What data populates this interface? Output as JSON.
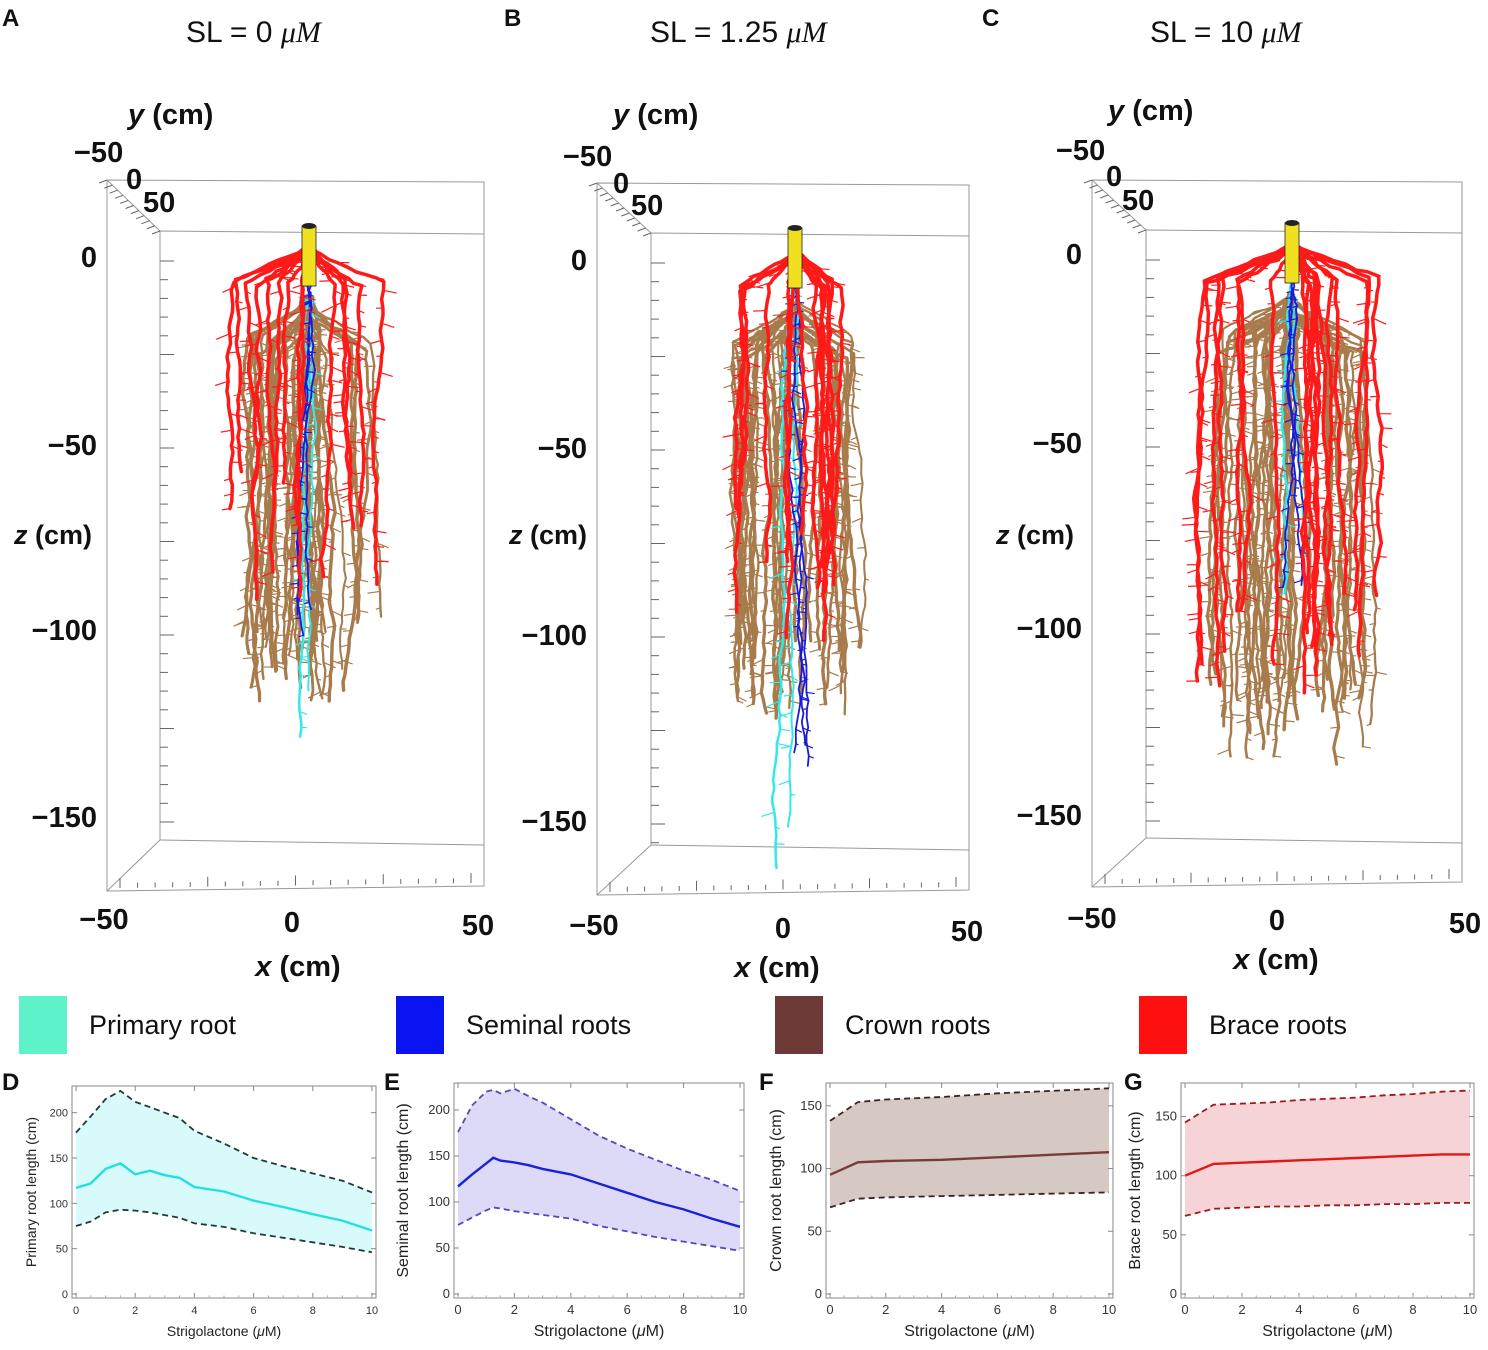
{
  "panels": {
    "A": {
      "letter": "A",
      "title_prefix": "SL = ",
      "title_value": "0",
      "title_unit": "μM"
    },
    "B": {
      "letter": "B",
      "title_prefix": "SL = ",
      "title_value": "1.25",
      "title_unit": "μM"
    },
    "C": {
      "letter": "C",
      "title_prefix": "SL = ",
      "title_value": "10",
      "title_unit": "μM"
    }
  },
  "sim_axes": {
    "y_label": "y (cm)",
    "z_label": "z (cm)",
    "x_label": "x (cm)",
    "y_ticks": [
      "−50",
      "0",
      "50"
    ],
    "z_ticks": [
      "0",
      "−50",
      "−100",
      "−150"
    ],
    "x_ticks": [
      "−50",
      "0",
      "50"
    ]
  },
  "legend": [
    {
      "label": "Primary root",
      "color": "#5ef2c8"
    },
    {
      "label": "Seminal roots",
      "color": "#0a14f0"
    },
    {
      "label": "Crown roots",
      "color": "#6e3a37"
    },
    {
      "label": "Brace roots",
      "color": "#ff1010"
    }
  ],
  "root_colors": {
    "primary": "#33e8e8",
    "seminal": "#1a1ad8",
    "crown": "#a77b4c",
    "brace": "#ff1a1a",
    "stem": "#f0e020"
  },
  "chart_data": [
    {
      "type": "line",
      "letter": "D",
      "xlabel": "Strigolactone (μM)",
      "ylabel": "Primary root length (cm)",
      "xlim": [
        0,
        10
      ],
      "ylim": [
        0,
        225
      ],
      "xticks": [
        0,
        2,
        4,
        6,
        8,
        10
      ],
      "yticks": [
        0,
        50,
        100,
        150,
        200
      ],
      "color": "#22e0e0",
      "band_color": "#d8fafa",
      "bound_color": "#1e3b36",
      "x": [
        0,
        0.5,
        1,
        1.5,
        2,
        2.5,
        3,
        3.5,
        4,
        5,
        6,
        7,
        8,
        9,
        10
      ],
      "mean": [
        117,
        122,
        138,
        144,
        132,
        136,
        131,
        128,
        118,
        113,
        103,
        96,
        88,
        81,
        70
      ],
      "upper": [
        178,
        196,
        215,
        224,
        212,
        206,
        200,
        194,
        180,
        166,
        150,
        141,
        133,
        125,
        112
      ],
      "lower": [
        75,
        80,
        90,
        93,
        92,
        90,
        87,
        84,
        78,
        74,
        67,
        62,
        57,
        52,
        46
      ]
    },
    {
      "type": "line",
      "letter": "E",
      "xlabel": "Strigolactone (μM)",
      "ylabel": "Seminal root length (cm)",
      "xlim": [
        0,
        10
      ],
      "ylim": [
        0,
        225
      ],
      "xticks": [
        0,
        2,
        4,
        6,
        8,
        10
      ],
      "yticks": [
        0,
        50,
        100,
        150,
        200
      ],
      "color": "#1a22d8",
      "band_color": "#dcdaf7",
      "bound_color": "#5a46b8",
      "x": [
        0,
        0.5,
        1,
        1.25,
        1.5,
        2,
        2.5,
        3,
        4,
        5,
        6,
        7,
        8,
        9,
        10
      ],
      "mean": [
        117,
        130,
        142,
        148,
        145,
        143,
        140,
        136,
        130,
        120,
        110,
        100,
        92,
        82,
        73
      ],
      "upper": [
        176,
        205,
        220,
        222,
        218,
        223,
        215,
        208,
        190,
        172,
        158,
        146,
        134,
        124,
        112
      ],
      "lower": [
        75,
        83,
        91,
        94,
        93,
        90,
        88,
        86,
        82,
        74,
        68,
        62,
        57,
        52,
        47
      ]
    },
    {
      "type": "line",
      "letter": "F",
      "xlabel": "Strigolactone (μM)",
      "ylabel": "Crown root length (cm)",
      "xlim": [
        0,
        10
      ],
      "ylim": [
        0,
        165
      ],
      "xticks": [
        0,
        2,
        4,
        6,
        8,
        10
      ],
      "yticks": [
        0,
        50,
        100,
        150
      ],
      "color": "#7a3b3b",
      "band_color": "#d6c8c2",
      "bound_color": "#3e2222",
      "x": [
        0,
        1,
        2,
        4,
        6,
        8,
        10
      ],
      "mean": [
        95,
        105,
        106,
        107,
        109,
        111,
        113
      ],
      "upper": [
        138,
        153,
        155,
        157,
        160,
        162,
        164
      ],
      "lower": [
        69,
        76,
        77,
        78,
        79,
        80,
        81
      ]
    },
    {
      "type": "line",
      "letter": "G",
      "xlabel": "Strigolactone (μM)",
      "ylabel": "Brace root length (cm)",
      "xlim": [
        0,
        10
      ],
      "ylim": [
        0,
        175
      ],
      "xticks": [
        0,
        2,
        4,
        6,
        8,
        10
      ],
      "yticks": [
        0,
        50,
        100,
        150
      ],
      "color": "#e01818",
      "band_color": "#f6d3d6",
      "bound_color": "#a01818",
      "x": [
        0,
        1,
        2,
        3,
        4,
        5,
        6,
        7,
        8,
        9,
        10
      ],
      "mean": [
        100,
        110,
        111,
        112,
        113,
        114,
        115,
        116,
        117,
        118,
        118
      ],
      "upper": [
        145,
        160,
        161,
        162,
        164,
        165,
        166,
        168,
        169,
        171,
        172
      ],
      "lower": [
        66,
        72,
        73,
        74,
        74,
        75,
        75,
        76,
        76,
        77,
        77
      ]
    }
  ]
}
